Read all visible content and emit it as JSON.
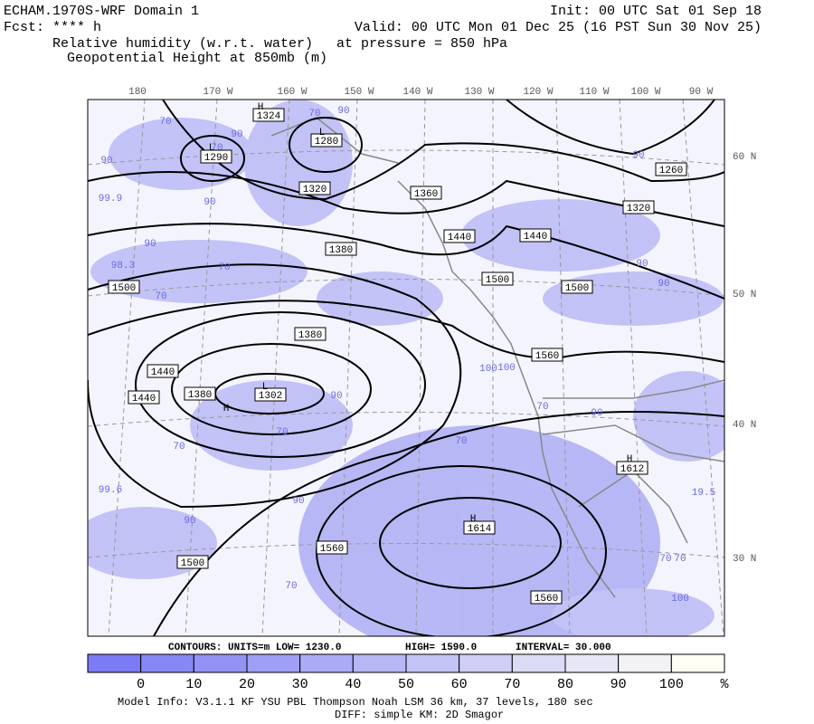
{
  "header": {
    "left": [
      "ECHAM.1970S-WRF Domain 1",
      "Fcst: **** h",
      "Relative humidity (w.r.t. water)",
      "Geopotential Height at 850mb (m)"
    ],
    "init": "Init: 00 UTC Sat 01 Sep 18",
    "valid": "Valid: 00 UTC Mon 01 Dec 25 (16 PST Sun 30 Nov 25)",
    "pressure": "at pressure =  850 hPa"
  },
  "map": {
    "longitudes": [
      "180",
      "170 W",
      "160 W",
      "150 W",
      "140 W",
      "130 W",
      "120 W",
      "110 W",
      "100 W",
      "90 W"
    ],
    "latitudes": [
      "60 N",
      "50 N",
      "40 N",
      "30 N"
    ],
    "contour_labels": [
      "1324",
      "1280",
      "1290",
      "1320",
      "1360",
      "1440",
      "1440",
      "1320",
      "1260",
      "1380",
      "1500",
      "1500",
      "1500",
      "1380",
      "1440",
      "1440",
      "1380",
      "1302",
      "1560",
      "1612",
      "1614",
      "1560",
      "1500",
      "1560"
    ],
    "centers": [
      "H",
      "L",
      "L",
      "L",
      "H",
      "H",
      "H"
    ],
    "rh_labels": [
      "70",
      "90",
      "70",
      "90",
      "99.9",
      "90",
      "90",
      "98.3",
      "70",
      "90",
      "70",
      "100",
      "90",
      "70",
      "70",
      "99.6",
      "90",
      "90",
      "70",
      "90",
      "70",
      "90",
      "70",
      "100",
      "70",
      "19.5",
      "70",
      "100",
      "70",
      "90",
      "90"
    ]
  },
  "contours": {
    "units": "CONTOURS:  UNITS=m  LOW=   1230.0",
    "high": "HIGH=  1590.0",
    "interval": "INTERVAL=    30.000"
  },
  "colorbar": {
    "labels": [
      "0",
      "10",
      "20",
      "30",
      "40",
      "50",
      "60",
      "70",
      "80",
      "90",
      "100",
      "%"
    ]
  },
  "footer": {
    "model_info": "Model Info: V3.1.1    KF      YSU PBL   Thompson    Noah LSM   36 km,    37 levels,   180 sec",
    "diff": "DIFF: simple KM: 2D Smagor"
  }
}
